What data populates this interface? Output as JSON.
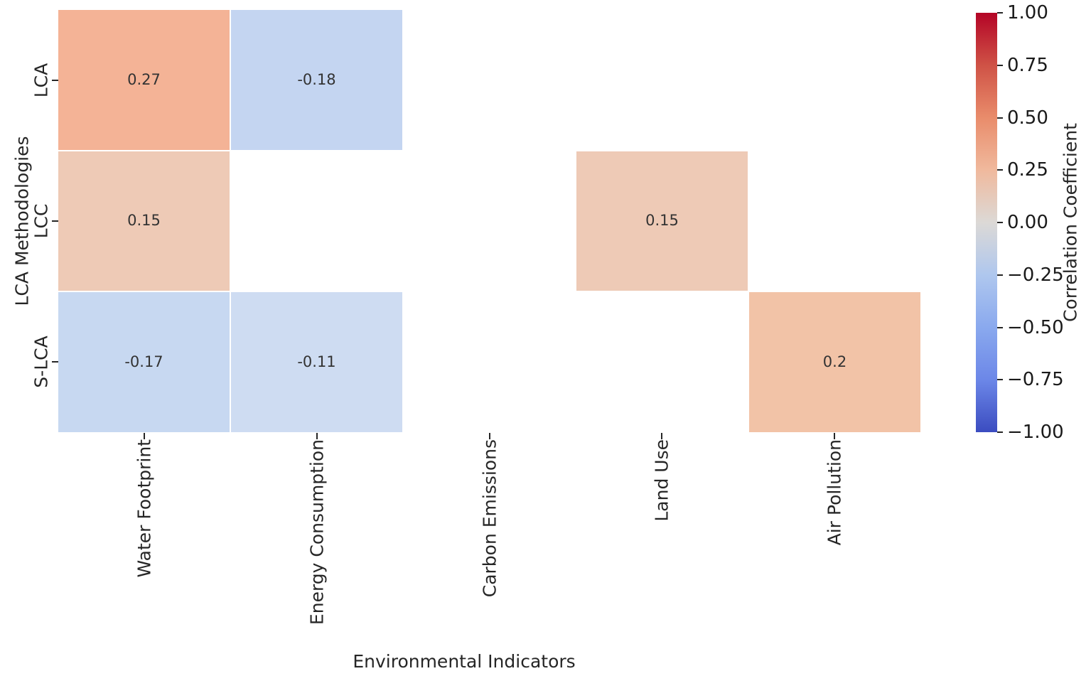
{
  "chart_data": {
    "type": "heatmap",
    "xlabel": "Environmental Indicators",
    "ylabel": "LCA Methodologies",
    "x_categories": [
      "Water Footprint",
      "Energy Consumption",
      "Carbon Emissions",
      "Land Use",
      "Air Pollution"
    ],
    "y_categories": [
      "LCA",
      "LCC",
      "S-LCA"
    ],
    "values": [
      [
        0.27,
        -0.18,
        null,
        null,
        null
      ],
      [
        0.15,
        null,
        null,
        0.15,
        null
      ],
      [
        -0.17,
        -0.11,
        null,
        null,
        0.2
      ]
    ],
    "cell_labels": [
      [
        "0.27",
        "-0.18",
        "",
        "",
        ""
      ],
      [
        "0.15",
        "",
        "",
        "0.15",
        ""
      ],
      [
        "-0.17",
        "-0.11",
        "",
        "",
        "0.2"
      ]
    ],
    "cell_colors": [
      [
        "#f4b396",
        "#c4d5f1",
        "#ffffff",
        "#ffffff",
        "#ffffff"
      ],
      [
        "#eecab6",
        "#ffffff",
        "#ffffff",
        "#eecab6",
        "#ffffff"
      ],
      [
        "#c7d8f1",
        "#cedcf2",
        "#ffffff",
        "#ffffff",
        "#f2c3a7"
      ]
    ],
    "mask_color": "#ffffff",
    "colorbar": {
      "label": "Correlation Coefficient",
      "vmin": -1.0,
      "vmax": 1.0,
      "ticks": [
        "1.00",
        "0.75",
        "0.50",
        "0.25",
        "0.00",
        "−0.25",
        "−0.50",
        "−0.75",
        "−1.00"
      ],
      "gradient_top_to_bottom": [
        "#b40426",
        "#cf5246",
        "#e98c6b",
        "#f0b99d",
        "#dcd9d6",
        "#afc7ee",
        "#8aa9ee",
        "#6c87e8",
        "#3b4cc0"
      ]
    },
    "legend_position": "right",
    "grid": false
  }
}
